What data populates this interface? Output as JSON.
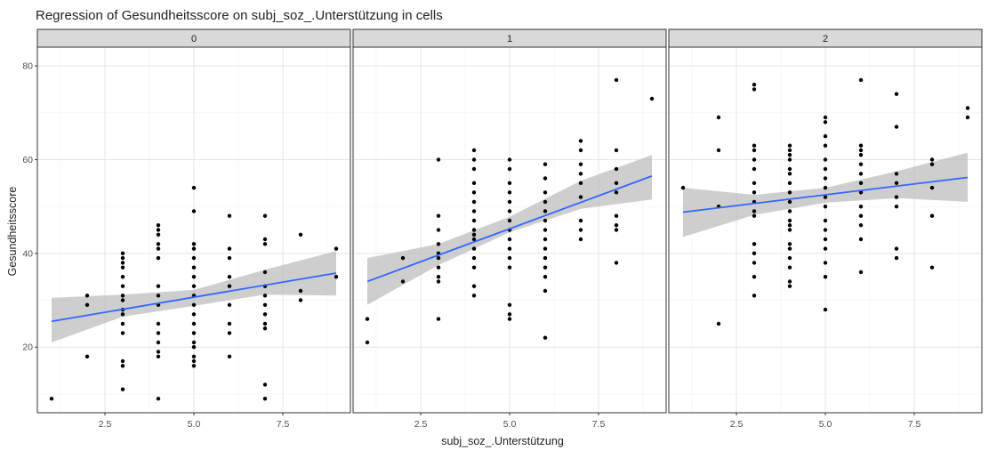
{
  "chart_data": {
    "type": "scatter",
    "title": "Regression of Gesundheitsscore on subj_soz_.Unterstützung in cells",
    "xlabel": "subj_soz_.Unterstützung",
    "ylabel": "Gesundheitsscore",
    "xlim": [
      0.6,
      9.4
    ],
    "ylim": [
      6,
      84
    ],
    "x_ticks": [
      2.5,
      5.0,
      7.5
    ],
    "x_tick_labels": [
      "2.5",
      "5.0",
      "7.5"
    ],
    "y_ticks": [
      20,
      40,
      60,
      80
    ],
    "y_tick_labels": [
      "20",
      "40",
      "60",
      "80"
    ],
    "grid": true,
    "colors": {
      "points": "#000000",
      "line": "#3366ff",
      "band": "#bdbdbd",
      "strip": "#d9d9d9"
    },
    "panels": [
      {
        "label": "0",
        "line": {
          "x": [
            1,
            9
          ],
          "y": [
            25.5,
            35.8
          ]
        },
        "band": {
          "x": [
            1,
            3,
            5,
            7,
            9
          ],
          "lower": [
            21,
            26.5,
            28.8,
            31.2,
            31
          ],
          "upper": [
            30.5,
            31.2,
            32.2,
            36.5,
            40.5
          ]
        },
        "points": [
          [
            1,
            9
          ],
          [
            2,
            18
          ],
          [
            2,
            29
          ],
          [
            2,
            31
          ],
          [
            3,
            11
          ],
          [
            3,
            16
          ],
          [
            3,
            17
          ],
          [
            3,
            23
          ],
          [
            3,
            25
          ],
          [
            3,
            27
          ],
          [
            3,
            28
          ],
          [
            3,
            30
          ],
          [
            3,
            31
          ],
          [
            3,
            33
          ],
          [
            3,
            35
          ],
          [
            3,
            37
          ],
          [
            3,
            38
          ],
          [
            3,
            39
          ],
          [
            3,
            40
          ],
          [
            4,
            9
          ],
          [
            4,
            18
          ],
          [
            4,
            19
          ],
          [
            4,
            21
          ],
          [
            4,
            23
          ],
          [
            4,
            25
          ],
          [
            4,
            29
          ],
          [
            4,
            31
          ],
          [
            4,
            33
          ],
          [
            4,
            39
          ],
          [
            4,
            41
          ],
          [
            4,
            42
          ],
          [
            4,
            44
          ],
          [
            4,
            45
          ],
          [
            4,
            46
          ],
          [
            5,
            16
          ],
          [
            5,
            17
          ],
          [
            5,
            18
          ],
          [
            5,
            20
          ],
          [
            5,
            21
          ],
          [
            5,
            23
          ],
          [
            5,
            25
          ],
          [
            5,
            27
          ],
          [
            5,
            29
          ],
          [
            5,
            31
          ],
          [
            5,
            33
          ],
          [
            5,
            35
          ],
          [
            5,
            37
          ],
          [
            5,
            39
          ],
          [
            5,
            41
          ],
          [
            5,
            42
          ],
          [
            5,
            49
          ],
          [
            5,
            54
          ],
          [
            6,
            18
          ],
          [
            6,
            23
          ],
          [
            6,
            25
          ],
          [
            6,
            29
          ],
          [
            6,
            33
          ],
          [
            6,
            35
          ],
          [
            6,
            39
          ],
          [
            6,
            41
          ],
          [
            6,
            48
          ],
          [
            7,
            9
          ],
          [
            7,
            12
          ],
          [
            7,
            24
          ],
          [
            7,
            25
          ],
          [
            7,
            27
          ],
          [
            7,
            29
          ],
          [
            7,
            31
          ],
          [
            7,
            33
          ],
          [
            7,
            36
          ],
          [
            7,
            42
          ],
          [
            7,
            43
          ],
          [
            7,
            48
          ],
          [
            8,
            30
          ],
          [
            8,
            32
          ],
          [
            8,
            44
          ],
          [
            9,
            35
          ],
          [
            9,
            41
          ]
        ]
      },
      {
        "label": "1",
        "line": {
          "x": [
            1,
            9
          ],
          "y": [
            34,
            56.5
          ]
        },
        "band": {
          "x": [
            1,
            3,
            5,
            7,
            9
          ],
          "lower": [
            29,
            37.5,
            44.5,
            49.5,
            51.5
          ],
          "upper": [
            39,
            42,
            47.8,
            55.5,
            61
          ]
        },
        "points": [
          [
            1,
            21
          ],
          [
            1,
            26
          ],
          [
            2,
            34
          ],
          [
            2,
            39
          ],
          [
            3,
            26
          ],
          [
            3,
            34
          ],
          [
            3,
            35
          ],
          [
            3,
            37
          ],
          [
            3,
            39
          ],
          [
            3,
            40
          ],
          [
            3,
            42
          ],
          [
            3,
            45
          ],
          [
            3,
            48
          ],
          [
            3,
            60
          ],
          [
            4,
            31
          ],
          [
            4,
            33
          ],
          [
            4,
            37
          ],
          [
            4,
            39
          ],
          [
            4,
            41
          ],
          [
            4,
            43
          ],
          [
            4,
            44
          ],
          [
            4,
            45
          ],
          [
            4,
            47
          ],
          [
            4,
            49
          ],
          [
            4,
            51
          ],
          [
            4,
            53
          ],
          [
            4,
            55
          ],
          [
            4,
            58
          ],
          [
            4,
            60
          ],
          [
            4,
            62
          ],
          [
            5,
            26
          ],
          [
            5,
            27
          ],
          [
            5,
            29
          ],
          [
            5,
            37
          ],
          [
            5,
            39
          ],
          [
            5,
            41
          ],
          [
            5,
            43
          ],
          [
            5,
            45
          ],
          [
            5,
            47
          ],
          [
            5,
            49
          ],
          [
            5,
            51
          ],
          [
            5,
            53
          ],
          [
            5,
            55
          ],
          [
            5,
            58
          ],
          [
            5,
            60
          ],
          [
            6,
            22
          ],
          [
            6,
            32
          ],
          [
            6,
            35
          ],
          [
            6,
            37
          ],
          [
            6,
            39
          ],
          [
            6,
            41
          ],
          [
            6,
            43
          ],
          [
            6,
            45
          ],
          [
            6,
            47
          ],
          [
            6,
            49
          ],
          [
            6,
            51
          ],
          [
            6,
            53
          ],
          [
            6,
            56
          ],
          [
            6,
            59
          ],
          [
            7,
            43
          ],
          [
            7,
            45
          ],
          [
            7,
            47
          ],
          [
            7,
            52
          ],
          [
            7,
            55
          ],
          [
            7,
            57
          ],
          [
            7,
            59
          ],
          [
            7,
            62
          ],
          [
            7,
            64
          ],
          [
            8,
            38
          ],
          [
            8,
            45
          ],
          [
            8,
            46
          ],
          [
            8,
            48
          ],
          [
            8,
            53
          ],
          [
            8,
            55
          ],
          [
            8,
            58
          ],
          [
            8,
            62
          ],
          [
            8,
            77
          ],
          [
            9,
            73
          ]
        ]
      },
      {
        "label": "2",
        "line": {
          "x": [
            1,
            9
          ],
          "y": [
            48.8,
            56.2
          ]
        },
        "band": {
          "x": [
            1,
            3,
            5,
            7,
            9
          ],
          "lower": [
            43.5,
            48.2,
            50.8,
            51.8,
            51
          ],
          "upper": [
            54,
            52.5,
            54,
            57.5,
            61.5
          ]
        },
        "points": [
          [
            1,
            54
          ],
          [
            2,
            25
          ],
          [
            2,
            50
          ],
          [
            2,
            62
          ],
          [
            2,
            69
          ],
          [
            3,
            31
          ],
          [
            3,
            35
          ],
          [
            3,
            38
          ],
          [
            3,
            40
          ],
          [
            3,
            42
          ],
          [
            3,
            48
          ],
          [
            3,
            49
          ],
          [
            3,
            51
          ],
          [
            3,
            53
          ],
          [
            3,
            55
          ],
          [
            3,
            58
          ],
          [
            3,
            60
          ],
          [
            3,
            62
          ],
          [
            3,
            63
          ],
          [
            3,
            75
          ],
          [
            3,
            76
          ],
          [
            4,
            33
          ],
          [
            4,
            34
          ],
          [
            4,
            37
          ],
          [
            4,
            39
          ],
          [
            4,
            41
          ],
          [
            4,
            42
          ],
          [
            4,
            45
          ],
          [
            4,
            46
          ],
          [
            4,
            47
          ],
          [
            4,
            49
          ],
          [
            4,
            51
          ],
          [
            4,
            53
          ],
          [
            4,
            55
          ],
          [
            4,
            57
          ],
          [
            4,
            58
          ],
          [
            4,
            60
          ],
          [
            4,
            61
          ],
          [
            4,
            62
          ],
          [
            4,
            63
          ],
          [
            5,
            28
          ],
          [
            5,
            35
          ],
          [
            5,
            38
          ],
          [
            5,
            41
          ],
          [
            5,
            43
          ],
          [
            5,
            45
          ],
          [
            5,
            47
          ],
          [
            5,
            50
          ],
          [
            5,
            52
          ],
          [
            5,
            54
          ],
          [
            5,
            56
          ],
          [
            5,
            58
          ],
          [
            5,
            60
          ],
          [
            5,
            63
          ],
          [
            5,
            65
          ],
          [
            5,
            68
          ],
          [
            5,
            69
          ],
          [
            6,
            36
          ],
          [
            6,
            43
          ],
          [
            6,
            46
          ],
          [
            6,
            48
          ],
          [
            6,
            50
          ],
          [
            6,
            53
          ],
          [
            6,
            55
          ],
          [
            6,
            57
          ],
          [
            6,
            59
          ],
          [
            6,
            61
          ],
          [
            6,
            62
          ],
          [
            6,
            63
          ],
          [
            6,
            77
          ],
          [
            7,
            39
          ],
          [
            7,
            41
          ],
          [
            7,
            50
          ],
          [
            7,
            52
          ],
          [
            7,
            55
          ],
          [
            7,
            57
          ],
          [
            7,
            67
          ],
          [
            7,
            74
          ],
          [
            8,
            37
          ],
          [
            8,
            48
          ],
          [
            8,
            54
          ],
          [
            8,
            59
          ],
          [
            8,
            60
          ],
          [
            9,
            69
          ],
          [
            9,
            71
          ]
        ]
      }
    ]
  }
}
